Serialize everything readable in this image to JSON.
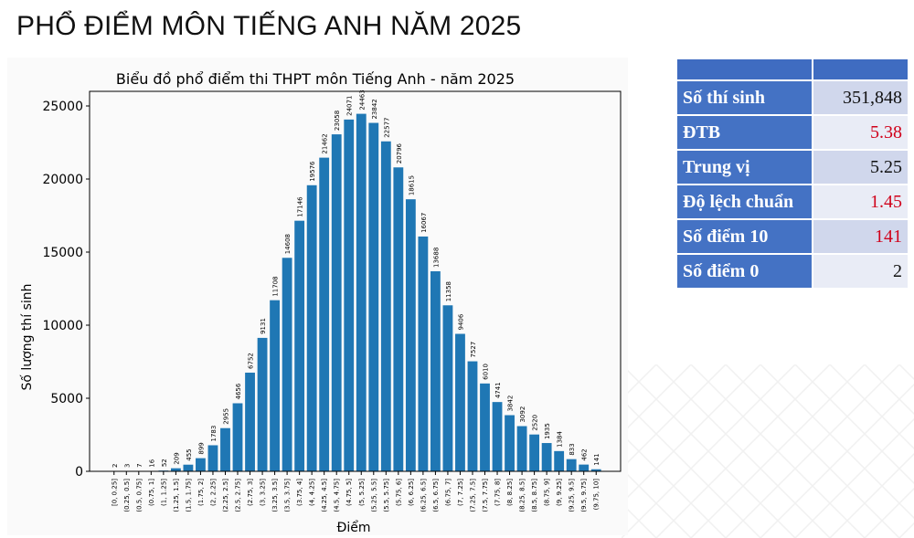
{
  "page_title": "PHỔ ĐIỂM MÔN TIẾNG ANH NĂM 2025",
  "stats_table": {
    "header": [
      "",
      ""
    ],
    "rows": [
      {
        "label": "Số thí sinh",
        "value": "351,848",
        "highlight": false
      },
      {
        "label": "ĐTB",
        "value": "5.38",
        "highlight": true
      },
      {
        "label": "Trung vị",
        "value": "5.25",
        "highlight": false
      },
      {
        "label": "Độ lệch chuẩn",
        "value": "1.45",
        "highlight": true
      },
      {
        "label": "Số điểm 10",
        "value": "141",
        "highlight": true
      },
      {
        "label": "Số điểm 0",
        "value": "2",
        "highlight": false
      }
    ]
  },
  "colors": {
    "bar": "#1f77b4",
    "table_header": "#4472c4",
    "highlight_value": "#d0021b"
  },
  "chart_data": {
    "type": "bar",
    "title": "Biểu đồ phổ điểm thi THPT môn Tiếng Anh - năm 2025",
    "xlabel": "Điểm",
    "ylabel": "Số lượng thí sinh",
    "ylim": [
      0,
      26000
    ],
    "yticks": [
      0,
      5000,
      10000,
      15000,
      20000,
      25000
    ],
    "grid": false,
    "categories": [
      "[0, 0.25]",
      "(0.25, 0.5]",
      "(0.5, 0.75]",
      "(0.75, 1]",
      "(1, 1.25]",
      "(1.25, 1.5]",
      "(1.5, 1.75]",
      "(1.75, 2]",
      "(2, 2.25]",
      "(2.25, 2.5]",
      "(2.5, 2.75]",
      "(2.75, 3]",
      "(3, 3.25]",
      "(3.25, 3.5]",
      "(3.5, 3.75]",
      "(3.75, 4]",
      "(4, 4.25]",
      "(4.25, 4.5]",
      "(4.5, 4.75]",
      "(4.75, 5]",
      "(5, 5.25]",
      "(5.25, 5.5]",
      "(5.5, 5.75]",
      "(5.75, 6]",
      "(6, 6.25]",
      "(6.25, 6.5]",
      "(6.5, 6.75]",
      "(6.75, 7]",
      "(7, 7.25]",
      "(7.25, 7.5]",
      "(7.5, 7.75]",
      "(7.75, 8]",
      "(8, 8.25]",
      "(8.25, 8.5]",
      "(8.5, 8.75]",
      "(8.75, 9]",
      "(9, 9.25]",
      "(9.25, 9.5]",
      "(9.5, 9.75]",
      "(9.75, 10]"
    ],
    "values": [
      2,
      3,
      7,
      16,
      52,
      209,
      455,
      899,
      1783,
      2955,
      4656,
      6752,
      9131,
      11708,
      14608,
      17146,
      19576,
      21462,
      23058,
      24071,
      24463,
      23842,
      22577,
      20796,
      18615,
      16067,
      13688,
      11358,
      9406,
      7527,
      6010,
      4741,
      3842,
      3092,
      2520,
      1935,
      1384,
      833,
      462,
      141
    ]
  }
}
